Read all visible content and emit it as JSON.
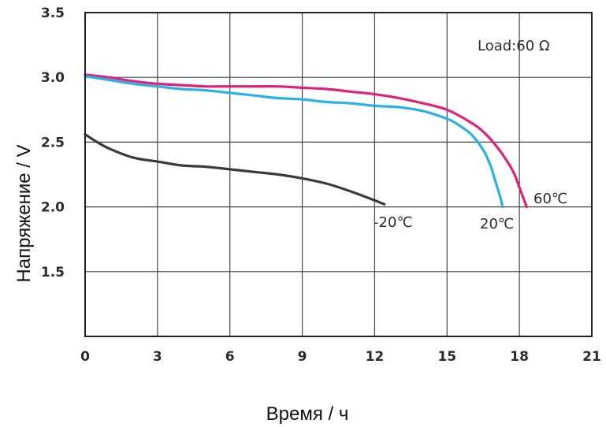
{
  "chart_data": {
    "type": "line",
    "title": "",
    "xlabel": "Время / ч",
    "ylabel": "Напряжение / V",
    "xlim": [
      0,
      21
    ],
    "ylim": [
      1.0,
      3.5
    ],
    "x_ticks": [
      "0",
      "3",
      "6",
      "9",
      "12",
      "15",
      "18",
      "21"
    ],
    "y_ticks": [
      "1.5",
      "2.0",
      "2.5",
      "3.0",
      "3.5"
    ],
    "grid": true,
    "annotation": "Load:60 Ω",
    "series": [
      {
        "name": "60℃",
        "color": "#e0217a",
        "points": [
          [
            0,
            3.02
          ],
          [
            1,
            3.0
          ],
          [
            2,
            2.97
          ],
          [
            3,
            2.95
          ],
          [
            4,
            2.94
          ],
          [
            5,
            2.93
          ],
          [
            6,
            2.93
          ],
          [
            7,
            2.93
          ],
          [
            8,
            2.93
          ],
          [
            9,
            2.92
          ],
          [
            10,
            2.91
          ],
          [
            11,
            2.89
          ],
          [
            12,
            2.87
          ],
          [
            13,
            2.84
          ],
          [
            14,
            2.8
          ],
          [
            15,
            2.75
          ],
          [
            16,
            2.65
          ],
          [
            16.5,
            2.58
          ],
          [
            17,
            2.48
          ],
          [
            17.5,
            2.35
          ],
          [
            17.8,
            2.25
          ],
          [
            18,
            2.15
          ],
          [
            18.2,
            2.05
          ],
          [
            18.3,
            2.0
          ]
        ]
      },
      {
        "name": "20℃",
        "color": "#2ab0e8",
        "points": [
          [
            0,
            3.01
          ],
          [
            1,
            2.98
          ],
          [
            2,
            2.95
          ],
          [
            3,
            2.93
          ],
          [
            4,
            2.91
          ],
          [
            5,
            2.9
          ],
          [
            6,
            2.88
          ],
          [
            7,
            2.86
          ],
          [
            8,
            2.84
          ],
          [
            9,
            2.83
          ],
          [
            10,
            2.81
          ],
          [
            11,
            2.8
          ],
          [
            12,
            2.78
          ],
          [
            13,
            2.77
          ],
          [
            14,
            2.74
          ],
          [
            15,
            2.68
          ],
          [
            15.5,
            2.63
          ],
          [
            16,
            2.56
          ],
          [
            16.5,
            2.44
          ],
          [
            16.8,
            2.32
          ],
          [
            17,
            2.2
          ],
          [
            17.2,
            2.08
          ],
          [
            17.3,
            2.0
          ]
        ]
      },
      {
        "name": "-20℃",
        "color": "#3a3a3a",
        "points": [
          [
            0,
            2.56
          ],
          [
            0.5,
            2.5
          ],
          [
            1,
            2.45
          ],
          [
            2,
            2.38
          ],
          [
            3,
            2.35
          ],
          [
            4,
            2.32
          ],
          [
            5,
            2.31
          ],
          [
            6,
            2.29
          ],
          [
            7,
            2.27
          ],
          [
            8,
            2.25
          ],
          [
            9,
            2.22
          ],
          [
            10,
            2.18
          ],
          [
            11,
            2.12
          ],
          [
            12,
            2.05
          ],
          [
            12.4,
            2.02
          ]
        ]
      }
    ]
  }
}
